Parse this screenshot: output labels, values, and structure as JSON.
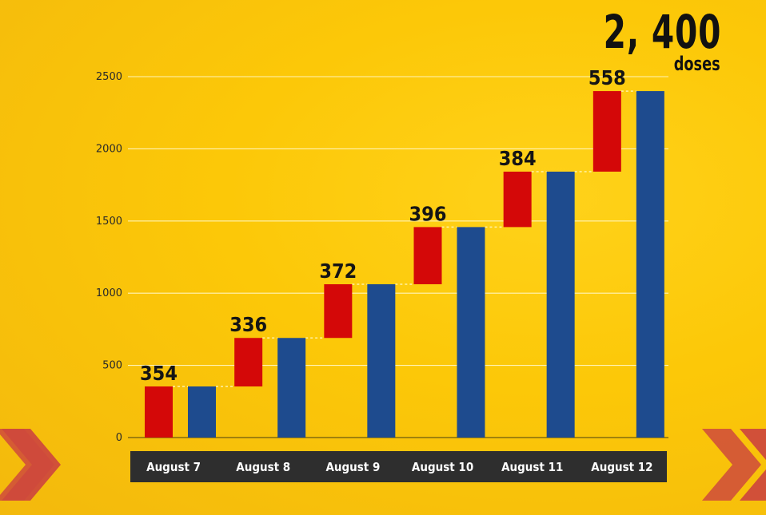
{
  "headline": {
    "total_value": "2, 400",
    "total_unit": "doses"
  },
  "colors": {
    "increment": "#d40808",
    "cumulative": "#1e4b8e",
    "gridline": "#fff4b8",
    "axis_band": "#2e2e2e",
    "chevron": "#cf4a3c"
  },
  "chart_data": {
    "type": "bar",
    "subtype": "waterfall",
    "categories": [
      "August 7",
      "August 8",
      "August 9",
      "August 10",
      "August 11",
      "August 12"
    ],
    "series": [
      {
        "role": "daily",
        "values": [
          354,
          336,
          372,
          396,
          384,
          558
        ]
      },
      {
        "role": "cumulative",
        "values": [
          354,
          690,
          1062,
          1458,
          1842,
          2400
        ]
      }
    ],
    "data_labels": [
      "354",
      "336",
      "372",
      "396",
      "384",
      "558"
    ],
    "yticks": [
      0,
      500,
      1000,
      1500,
      2000,
      2500
    ],
    "ylim": [
      0,
      2500
    ],
    "grid": true,
    "title": "",
    "xlabel": "",
    "ylabel": ""
  }
}
